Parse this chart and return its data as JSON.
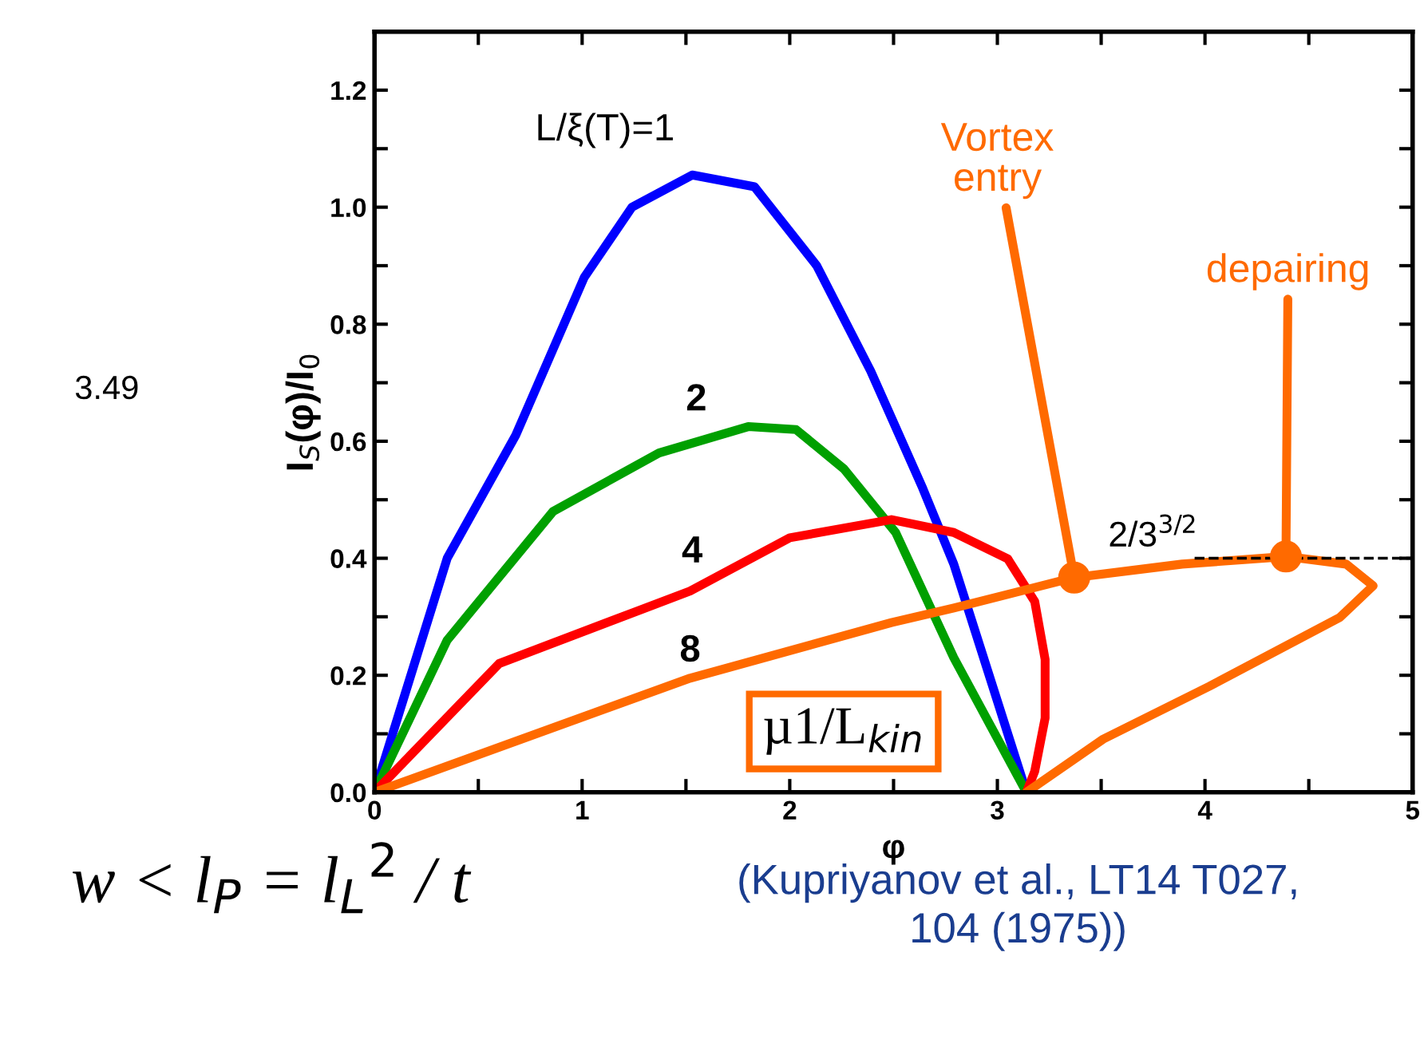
{
  "chart_data": {
    "type": "line",
    "xlabel": "φ",
    "ylabel": "I$_{S}$(φ)/I$_{0}$",
    "xlim": [
      0,
      5
    ],
    "ylim": [
      0,
      1.3
    ],
    "xticks": [
      0,
      {
        "value": 0.5,
        "label": null
      },
      1,
      {
        "value": 1.5,
        "label": null
      },
      2,
      {
        "value": 2.5,
        "label": null
      },
      3,
      {
        "value": 3.5,
        "label": null
      },
      4,
      {
        "value": 4.5,
        "label": null
      },
      5
    ],
    "yticks": [
      {
        "value": 0,
        "label": "0.0"
      },
      {
        "value": 0.1,
        "label": null
      },
      0.2,
      {
        "value": 0.3,
        "label": null
      },
      0.4,
      {
        "value": 0.5,
        "label": null
      },
      0.6,
      {
        "value": 0.7,
        "label": null
      },
      0.8,
      {
        "value": 0.9,
        "label": null
      },
      {
        "value": 1,
        "label": "1.0"
      },
      {
        "value": 1.1,
        "label": null
      },
      1.2
    ],
    "grid": false,
    "legend": false,
    "marker": "none",
    "line_style": "solid",
    "series": [
      {
        "color": "#0000ff",
        "x": [
          0,
          0.35,
          0.68,
          1.01,
          1.24,
          1.53,
          1.83,
          2.13,
          2.39,
          2.64,
          2.79,
          3.14
        ],
        "values": [
          0,
          0.4,
          0.61,
          0.88,
          1.0,
          1.055,
          1.035,
          0.9,
          0.72,
          0.52,
          0.39,
          0
        ]
      },
      {
        "color": "#00a000",
        "x": [
          0,
          0.35,
          0.86,
          1.37,
          1.8,
          2.03,
          2.26,
          2.51,
          2.79,
          3.14
        ],
        "values": [
          0,
          0.26,
          0.48,
          0.58,
          0.625,
          0.62,
          0.553,
          0.444,
          0.23,
          0
        ]
      },
      {
        "color": "#ff0000",
        "x": [
          0,
          0.6,
          1.52,
          2.0,
          2.49,
          2.79,
          3.05,
          3.18,
          3.23,
          3.23,
          3.18,
          3.14
        ],
        "values": [
          0,
          0.22,
          0.344,
          0.435,
          0.466,
          0.444,
          0.399,
          0.326,
          0.227,
          0.127,
          0.036,
          0
        ]
      },
      {
        "color": "#ff6a00",
        "x": [
          0,
          1.52,
          2.49,
          2.79,
          3.37,
          3.89,
          4.39,
          4.68,
          4.81,
          4.65,
          4.02,
          3.51,
          3.14
        ],
        "values": [
          0,
          0.195,
          0.29,
          0.315,
          0.367,
          0.39,
          0.403,
          0.39,
          0.353,
          0.299,
          0.181,
          0.091,
          0
        ]
      },
      {
        "type": "scatter",
        "marker": "circle",
        "color": "#ff6a00",
        "x": [
          3.37,
          4.39
        ],
        "values": [
          0.367,
          0.403
        ]
      },
      {
        "color": "#000000",
        "line_style": "dashed",
        "x": [
          3.95,
          5
        ],
        "values": [
          0.4,
          0.4
        ]
      }
    ],
    "annotations": [
      "L/ξ(T)=1",
      "2",
      "4",
      "8",
      "2/3$^{3/2}$",
      "µ1/L$_{kin}$",
      {
        "text": "Vortex\nentry",
        "x": 3.37,
        "y": 0.367
      },
      {
        "text": "depairing",
        "x": 4.39,
        "y": 0.403
      },
      "3.49",
      "w < l$_{P}$ = l$_{L}$$^{2}$ / t",
      "(Kupriyanov et al., LT14 T027,\n104 (1975))"
    ]
  }
}
